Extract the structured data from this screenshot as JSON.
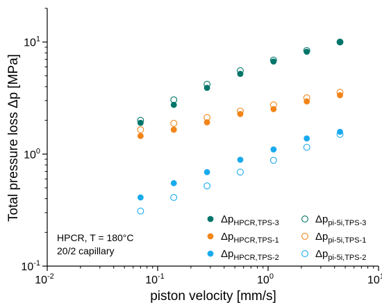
{
  "chart_data": {
    "type": "scatter",
    "xlabel": "piston velocity [mm/s]",
    "ylabel": "Total pressure loss Δp [MPa]",
    "xscale": "log",
    "yscale": "log",
    "xlim": [
      0.01,
      10
    ],
    "ylim": [
      0.1,
      20
    ],
    "grid": false,
    "legend_placement": "bottom-right",
    "x_ticks": [
      {
        "value": 0.01,
        "base": "10",
        "exp": "-2"
      },
      {
        "value": 0.1,
        "base": "10",
        "exp": "-1"
      },
      {
        "value": 1,
        "base": "10",
        "exp": "0"
      },
      {
        "value": 10,
        "base": "10",
        "exp": "1"
      }
    ],
    "y_ticks": [
      {
        "value": 0.1,
        "base": "10",
        "exp": "-1"
      },
      {
        "value": 1,
        "base": "10",
        "exp": "0"
      },
      {
        "value": 10,
        "base": "10",
        "exp": "1"
      }
    ],
    "annotation": [
      "HPCR, T = 180°C",
      "20/2 capillary"
    ],
    "series": [
      {
        "label_main": "Δp",
        "label_sub": "HPCR,TPS-3",
        "marker": "filled",
        "color": "#00756a",
        "x": [
          0.07,
          0.14,
          0.28,
          0.56,
          1.12,
          2.24,
          4.48
        ],
        "y": [
          1.9,
          2.75,
          3.9,
          5.2,
          6.7,
          8.2,
          10
        ]
      },
      {
        "label_main": "Δp",
        "label_sub": "HPCR,TPS-1",
        "marker": "filled",
        "color": "#f28418",
        "x": [
          0.07,
          0.14,
          0.28,
          0.56,
          1.12,
          2.24,
          4.48
        ],
        "y": [
          1.45,
          1.65,
          1.92,
          2.28,
          2.52,
          2.95,
          3.35
        ]
      },
      {
        "label_main": "Δp",
        "label_sub": "HPCR,TPS-2",
        "marker": "filled",
        "color": "#19aaee",
        "x": [
          0.07,
          0.14,
          0.28,
          0.56,
          1.12,
          2.24,
          4.48
        ],
        "y": [
          0.41,
          0.55,
          0.69,
          0.89,
          1.1,
          1.38,
          1.58
        ]
      },
      {
        "label_main": "Δp",
        "label_sub": "pi-5i,TPS-3",
        "marker": "open",
        "color": "#00756a",
        "x": [
          0.07,
          0.14,
          0.28,
          0.56,
          1.12,
          2.24,
          4.48
        ],
        "y": [
          2.0,
          3.05,
          4.2,
          5.55,
          6.9,
          8.4,
          10
        ]
      },
      {
        "label_main": "Δp",
        "label_sub": "pi-5i,TPS-1",
        "marker": "open",
        "color": "#f28418",
        "x": [
          0.07,
          0.14,
          0.28,
          0.56,
          1.12,
          2.24,
          4.48
        ],
        "y": [
          1.65,
          1.88,
          2.12,
          2.42,
          2.75,
          3.18,
          3.55
        ]
      },
      {
        "label_main": "Δp",
        "label_sub": "pi-5i,TPS-2",
        "marker": "open",
        "color": "#19aaee",
        "x": [
          0.07,
          0.14,
          0.28,
          0.56,
          1.12,
          2.24,
          4.48
        ],
        "y": [
          0.31,
          0.41,
          0.52,
          0.69,
          0.88,
          1.15,
          1.5
        ]
      }
    ]
  }
}
